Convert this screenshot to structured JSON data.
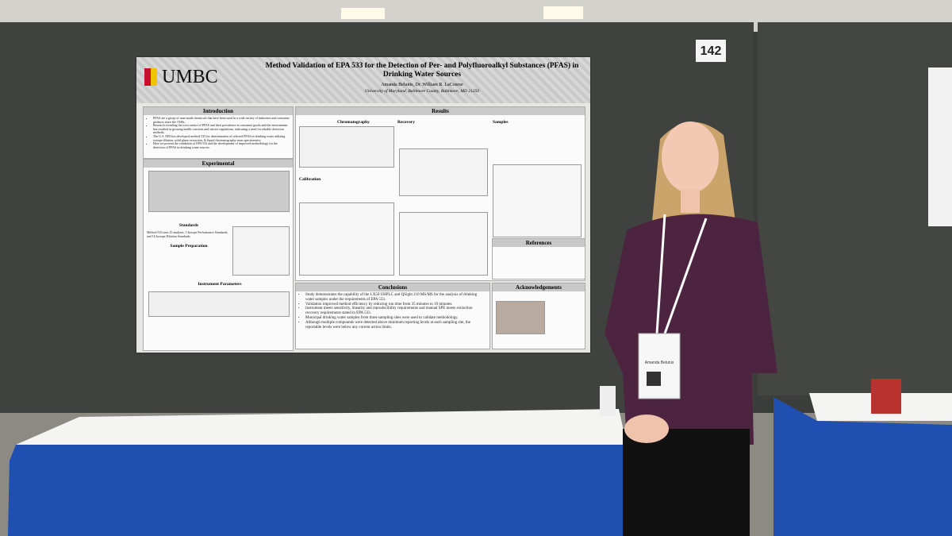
{
  "booth_number": "142",
  "poster": {
    "logo": "UMBC",
    "title": "Method Validation of EPA 533 for the Detection of Per- and Polyfluoroalkyl Substances (PFAS) in Drinking Water Sources",
    "authors": "Amanda Belunis, Dr. William R. LaCourse",
    "affiliation": "University of Maryland, Baltimore County, Baltimore, MD 21250",
    "introduction": {
      "heading": "Introduction",
      "items": [
        "PFAS are a group of man-made chemicals that have been used in a wide variety of industries and consumer products since the 1940s.",
        "Research revealing the toxic nature of PFAS and their prevalence in consumer goods and the environment has resulted in growing health concerns and stricter regulations, indicating a need for reliable detection methods.",
        "The U.S. EPA has developed method 533 for determination of selected PFAS in drinking water utilizing isotope dilution, solid phase extraction, & liquid chromatography-mass spectrometry.",
        "Here we present the validation of EPA 533 and the development of improved methodology for the detection of PFAS in drinking water sources."
      ]
    },
    "experimental": {
      "heading": "Experimental",
      "standards_heading": "Standards",
      "standards_text": "Method 533 uses 25 analytes, 3 Isotope Performance Standards, and 16 Isotope Dilution Standards.",
      "sample_prep_heading": "Sample Preparation",
      "instrument_heading": "Instrument Parameters"
    },
    "results": {
      "heading": "Results",
      "chromatography": "Chromatography",
      "recovery": "Recovery",
      "samples": "Samples",
      "calibration": "Calibration"
    },
    "references_heading": "References",
    "conclusions": {
      "heading": "Conclusions",
      "items": [
        "Study demonstrates the capability of the LX50 UHPLC and QSight 210 MS/MS for the analysis of drinking water samples under the requirements of EPA 533.",
        "Validation improved method efficiency by reducing run time from 35 minutes to 10 minutes.",
        "Instrument meets sensitivity, linearity and reproducibility requirements and manual SPE meets extraction recovery requirements stated in EPA 533.",
        "Municipal drinking water samples from three sampling sites were used to validate methodology.",
        "Although multiple compounds were detected above minimum reporting levels at each sampling site, the reportable levels were below any current action limits."
      ]
    },
    "acknowledgements_heading": "Acknowledgements"
  },
  "badge": {
    "name": "Amanda Belunis"
  }
}
